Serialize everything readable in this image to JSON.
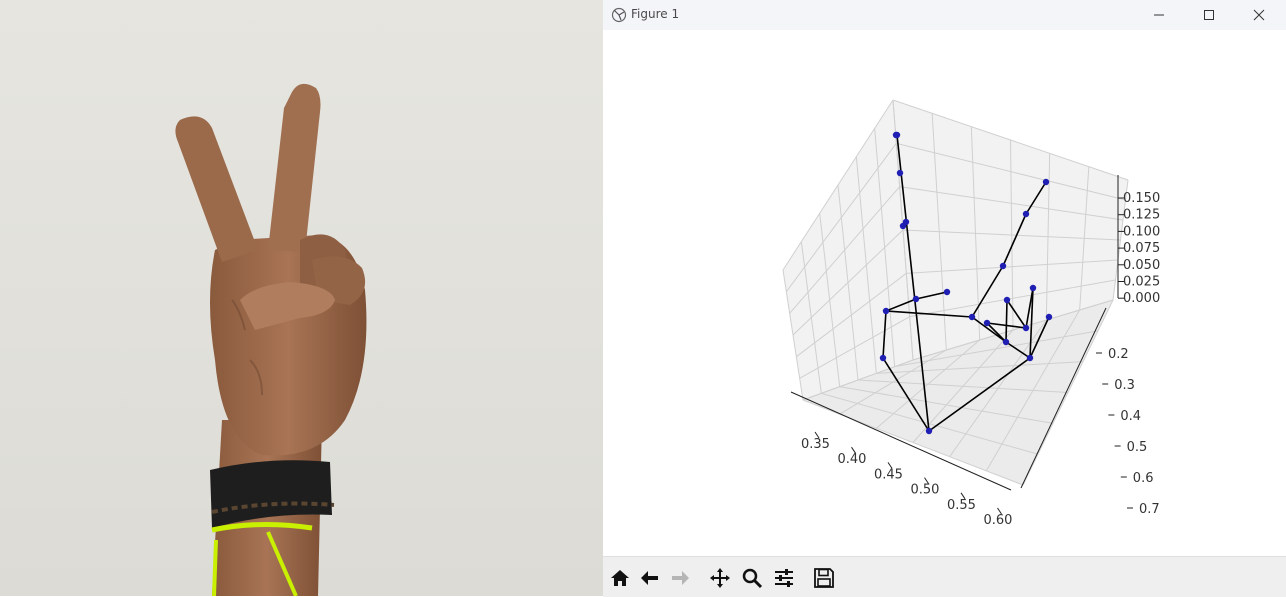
{
  "window": {
    "title": "Figure 1",
    "controls": {
      "minimize": "—",
      "maximize": "☐",
      "close": "✕"
    }
  },
  "toolbar": {
    "buttons": [
      {
        "name": "home",
        "icon": "home-icon"
      },
      {
        "name": "back",
        "icon": "arrow-left-icon"
      },
      {
        "name": "forward",
        "icon": "arrow-right-icon",
        "disabled": true
      },
      {
        "name": "pan",
        "icon": "move-icon"
      },
      {
        "name": "zoom",
        "icon": "magnifier-icon"
      },
      {
        "name": "configure-subplots",
        "icon": "sliders-icon"
      },
      {
        "name": "save",
        "icon": "floppy-disk-icon"
      }
    ]
  },
  "chart_data": {
    "type": "scatter",
    "projection": "3d",
    "x_ticks": [
      "0.35",
      "0.40",
      "0.45",
      "0.50",
      "0.55",
      "0.60"
    ],
    "y_ticks": [
      "0.2",
      "0.3",
      "0.4",
      "0.5",
      "0.6",
      "0.7"
    ],
    "z_ticks": [
      "0.000",
      "0.025",
      "0.050",
      "0.075",
      "0.100",
      "0.125",
      "0.150"
    ],
    "xlim": [
      0.32,
      0.62
    ],
    "ylim": [
      0.15,
      0.72
    ],
    "zlim": [
      0.0,
      0.16
    ],
    "grid": true,
    "point_color": "#1f1fb4",
    "line_color": "#000000"
  }
}
